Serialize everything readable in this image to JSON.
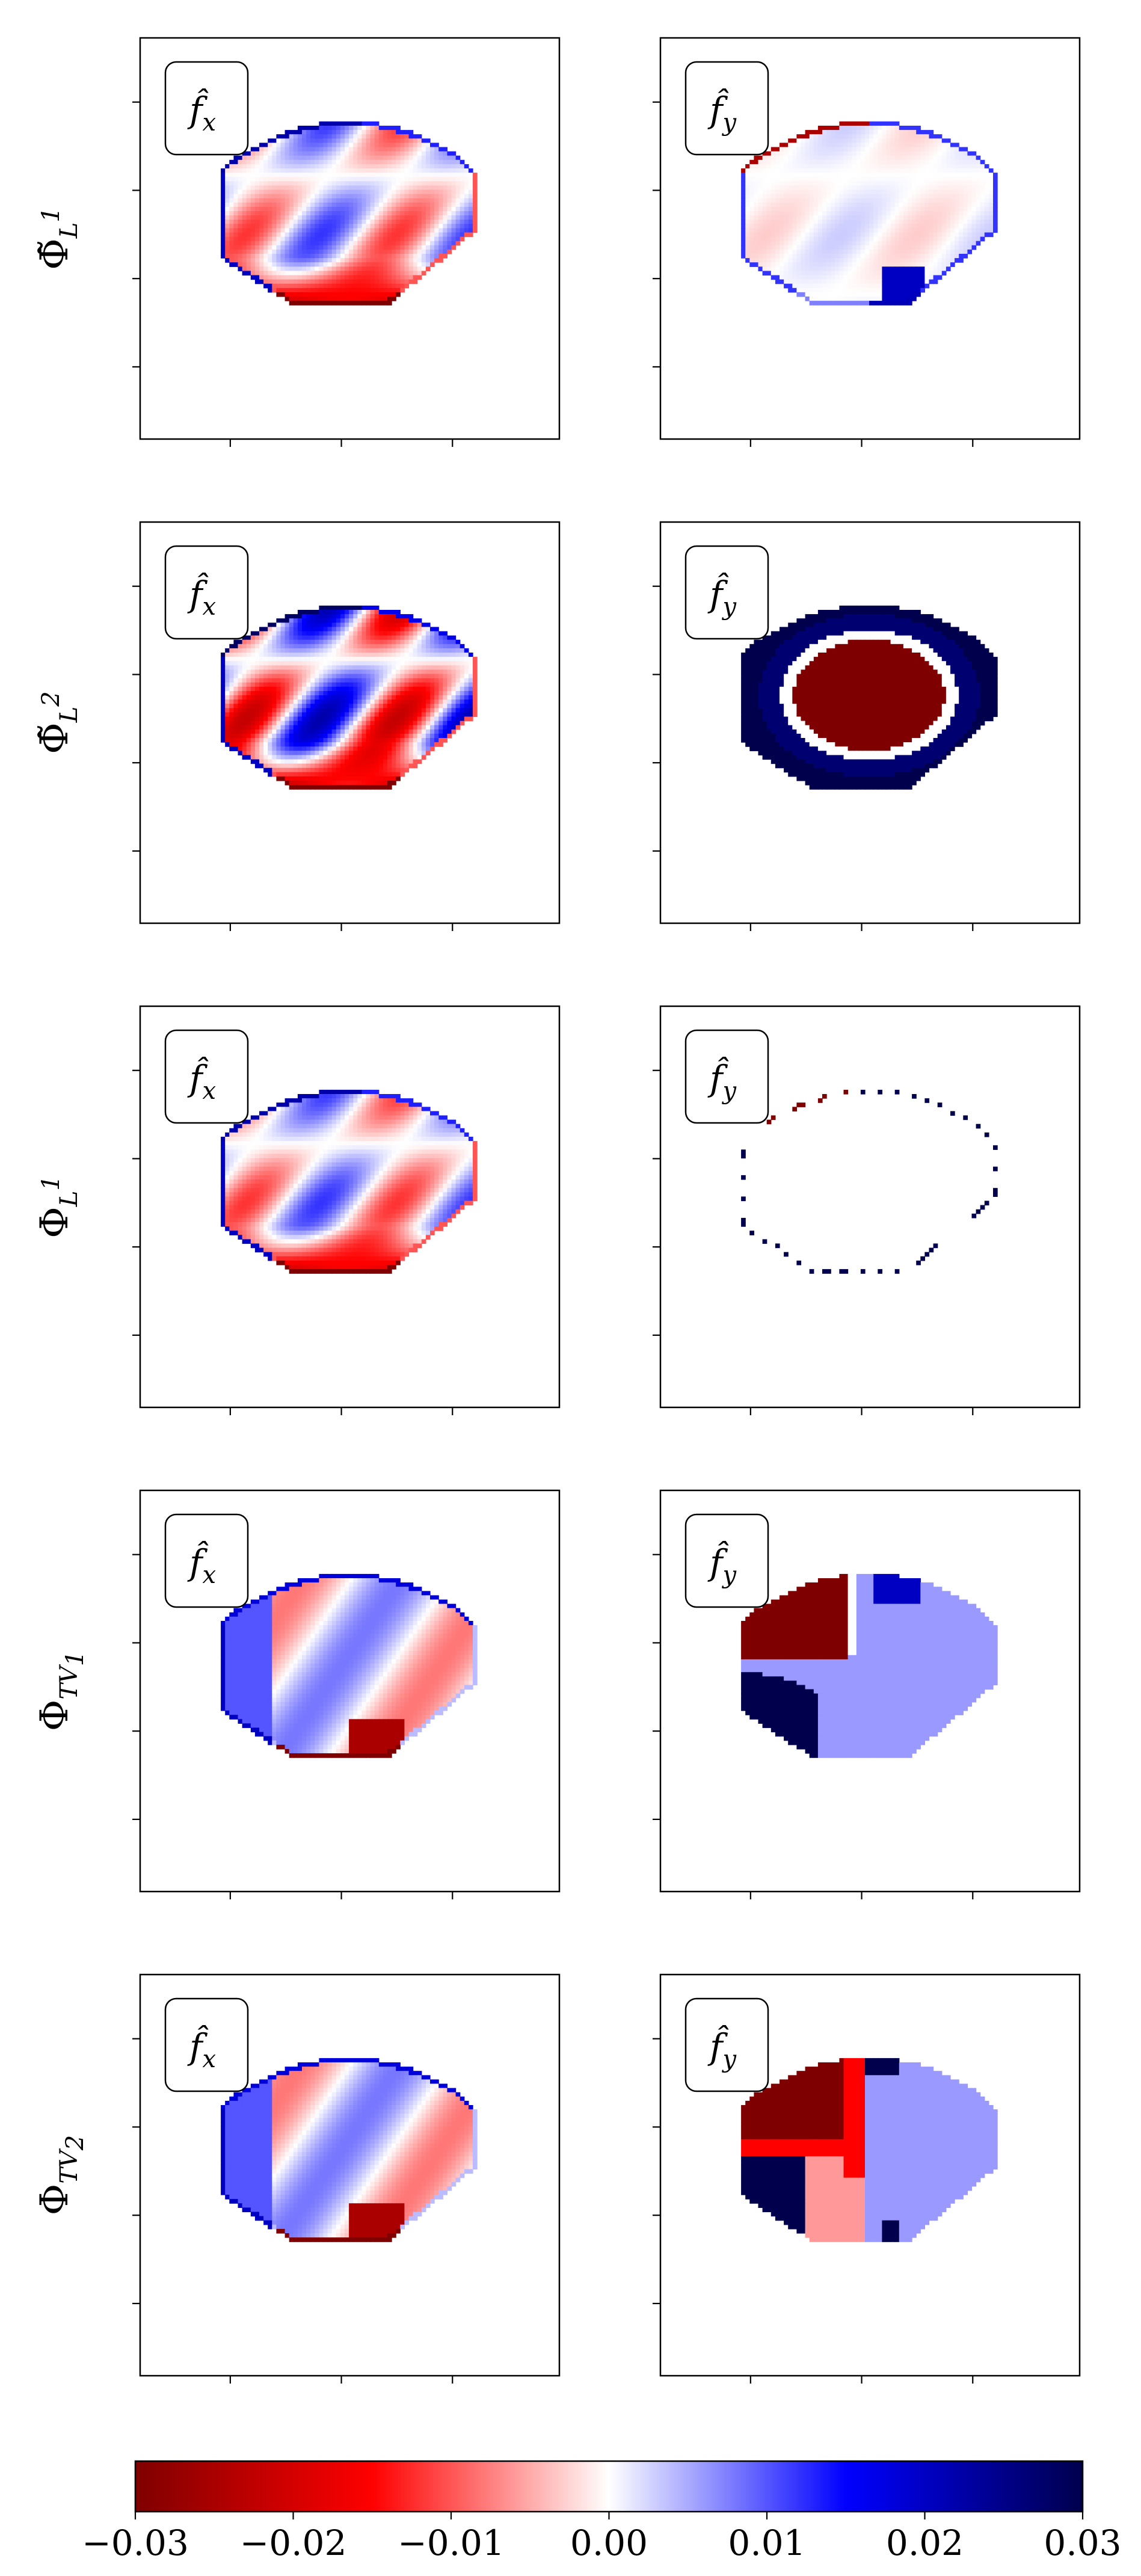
{
  "chart_data": {
    "type": "heatmap",
    "layout": {
      "rows": 5,
      "cols": 2
    },
    "column_labels": [
      "f̂x",
      "f̂y"
    ],
    "column_label_parts": [
      {
        "base": "f̂",
        "sub": "x"
      },
      {
        "base": "f̂",
        "sub": "y"
      }
    ],
    "rows": [
      {
        "label": "Φ̃",
        "sub": "L",
        "sup": "1"
      },
      {
        "label": "Φ̃",
        "sub": "L",
        "sup": "2"
      },
      {
        "label": "Φ",
        "sub": "L",
        "sup": "1"
      },
      {
        "label": "Φ",
        "sub": "TV",
        "subsub": "1"
      },
      {
        "label": "Φ",
        "sub": "TV",
        "subsub": "2"
      }
    ],
    "colorbar": {
      "orientation": "horizontal",
      "placement": "bottom",
      "range": [
        -0.03,
        0.03
      ],
      "colormap": "seismic_r",
      "ticks": [
        -0.03,
        -0.02,
        -0.01,
        0.0,
        0.01,
        0.02,
        0.03
      ],
      "tick_labels": [
        "−0.03",
        "−0.02",
        "−0.01",
        "0.00",
        "0.01",
        "0.02",
        "0.03"
      ]
    },
    "color_stops": {
      "negative_extreme": "#7f0000",
      "negative_mid": "#ff0000",
      "zero": "#ffffff",
      "positive_mid": "#0000ff",
      "positive_extreme": "#00004c"
    },
    "panels": [
      {
        "row": 0,
        "col": 0,
        "pattern": "wavy",
        "amplitude": 0.012,
        "edge_top": 0.022,
        "edge_bottom": -0.03,
        "edge_left": 0.02
      },
      {
        "row": 0,
        "col": 1,
        "pattern": "faint",
        "amplitude": 0.005,
        "edge_top": -0.025,
        "edge_bottom": 0.015,
        "edge_left": 0.012
      },
      {
        "row": 1,
        "col": 0,
        "pattern": "wavy_strong",
        "amplitude": 0.022,
        "edge_top": 0.028,
        "edge_bottom": -0.03,
        "edge_left": 0.02
      },
      {
        "row": 1,
        "col": 1,
        "pattern": "blob",
        "inner_value": -0.03,
        "ring_value": 0.03
      },
      {
        "row": 2,
        "col": 0,
        "pattern": "wavy",
        "amplitude": 0.012,
        "edge_top": 0.022,
        "edge_bottom": -0.03,
        "edge_left": 0.02
      },
      {
        "row": 2,
        "col": 1,
        "pattern": "sparse_boundary"
      },
      {
        "row": 3,
        "col": 0,
        "pattern": "smooth",
        "amplitude": 0.008,
        "edge_top": 0.018,
        "edge_bottom": -0.03,
        "edge_left": 0.02
      },
      {
        "row": 3,
        "col": 1,
        "pattern": "piecewise_smooth",
        "background": 0.006,
        "top_left": -0.03,
        "bottom_left": 0.03,
        "top_notch": 0.02
      },
      {
        "row": 4,
        "col": 0,
        "pattern": "smooth",
        "amplitude": 0.008,
        "edge_top": 0.018,
        "edge_bottom": -0.03,
        "edge_left": 0.02
      },
      {
        "row": 4,
        "col": 1,
        "pattern": "blocky",
        "background": 0.006,
        "top_left": -0.03,
        "stripe": -0.015,
        "bottom_middle": -0.006,
        "bottom_left": 0.03
      }
    ]
  }
}
